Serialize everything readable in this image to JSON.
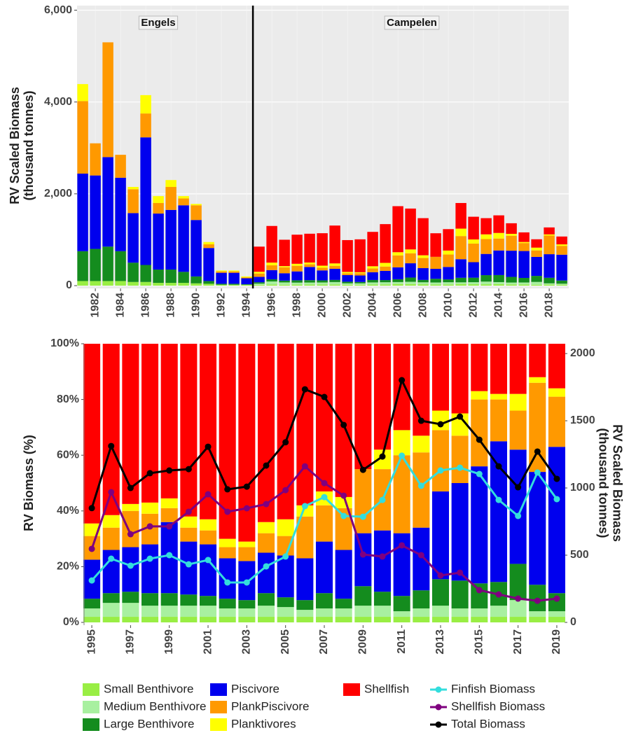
{
  "chart_data": [
    {
      "type": "bar",
      "stacked": true,
      "grid": true,
      "ylabel": [
        "RV Scaled Biomass",
        "(thousand tonnes)"
      ],
      "x": [
        1981,
        1982,
        1983,
        1984,
        1985,
        1986,
        1987,
        1988,
        1989,
        1990,
        1991,
        1992,
        1993,
        1994,
        1995,
        1996,
        1997,
        1998,
        1999,
        2000,
        2001,
        2002,
        2003,
        2004,
        2005,
        2006,
        2007,
        2008,
        2009,
        2010,
        2011,
        2012,
        2013,
        2014,
        2015,
        2016,
        2017,
        2018,
        2019
      ],
      "xlim": [
        1980.55,
        2019.55
      ],
      "xticks": [
        1982,
        1984,
        1986,
        1988,
        1990,
        1992,
        1994,
        1996,
        1998,
        2000,
        2002,
        2004,
        2006,
        2008,
        2010,
        2012,
        2014,
        2016,
        2018
      ],
      "ylim": [
        0,
        6100
      ],
      "yticks": [
        0,
        {
          "value": 2000,
          "label": "2,000"
        },
        {
          "value": 4000,
          "label": "4,000"
        },
        {
          "value": 6000,
          "label": "6,000"
        }
      ],
      "divider_x": 1994.5,
      "annotations": [
        "Engels",
        "Campelen"
      ],
      "series": [
        {
          "name": "Small Benthivore",
          "color": "#99ee44",
          "values": [
            100,
            100,
            100,
            100,
            80,
            80,
            60,
            60,
            60,
            50,
            40,
            20,
            20,
            20,
            17,
            26,
            20,
            22,
            23,
            23,
            26,
            20,
            20,
            23,
            27,
            35,
            34,
            29,
            23,
            25,
            36,
            30,
            29,
            31,
            27,
            23,
            20,
            25,
            21
          ]
        },
        {
          "name": "Medium Benthivore",
          "color": "#a8f0a0",
          "values": [
            0,
            0,
            0,
            0,
            0,
            0,
            0,
            0,
            0,
            0,
            0,
            0,
            0,
            0,
            26,
            65,
            50,
            44,
            45,
            46,
            52,
            30,
            30,
            47,
            47,
            43,
            50,
            44,
            46,
            49,
            36,
            45,
            59,
            46,
            41,
            46,
            61,
            25,
            21
          ]
        },
        {
          "name": "Large Benthivore",
          "color": "#148c1e",
          "values": [
            650,
            700,
            750,
            650,
            420,
            370,
            290,
            290,
            240,
            150,
            60,
            20,
            20,
            10,
            30,
            46,
            40,
            50,
            51,
            46,
            46,
            35,
            30,
            53,
            47,
            61,
            92,
            51,
            80,
            62,
            99,
            98,
            140,
            153,
            122,
            99,
            131,
            121,
            70
          ]
        },
        {
          "name": "Piscivore",
          "color": "#0000ee",
          "values": [
            1690,
            1600,
            1950,
            1600,
            1080,
            2780,
            1220,
            1300,
            1450,
            1230,
            720,
            240,
            240,
            130,
            119,
            202,
            160,
            194,
            288,
            217,
            242,
            144,
            141,
            170,
            201,
            260,
            311,
            257,
            217,
            271,
            405,
            338,
            463,
            536,
            571,
            586,
            414,
            514,
            562
          ]
        },
        {
          "name": "PlankPiscivore",
          "color": "#ff9900",
          "values": [
            1580,
            700,
            2500,
            500,
            520,
            520,
            230,
            500,
            150,
            320,
            80,
            30,
            30,
            20,
            72,
            104,
            130,
            122,
            57,
            57,
            66,
            40,
            51,
            82,
            94,
            260,
            218,
            221,
            262,
            271,
            504,
            405,
            323,
            260,
            326,
            174,
            141,
            406,
            193
          ]
        },
        {
          "name": "Planktivores",
          "color": "#ffff00",
          "values": [
            370,
            0,
            0,
            0,
            50,
            400,
            150,
            150,
            50,
            30,
            50,
            20,
            20,
            20,
            38,
            59,
            25,
            44,
            40,
            46,
            52,
            30,
            20,
            47,
            80,
            69,
            84,
            59,
            0,
            86,
            162,
            90,
            103,
            122,
            41,
            23,
            61,
            25,
            32
          ]
        },
        {
          "name": "Shellfish",
          "color": "#ff0000",
          "values": [
            0,
            0,
            0,
            0,
            0,
            0,
            0,
            0,
            0,
            0,
            0,
            0,
            0,
            0,
            548,
            798,
            575,
            634,
            627,
            707,
            825,
            693,
            717,
            749,
            844,
            1003,
            890,
            809,
            513,
            467,
            558,
            495,
            353,
            383,
            231,
            209,
            182,
            152,
            171
          ]
        }
      ]
    },
    {
      "type": "combo",
      "stacked": true,
      "legend": "bottom",
      "ylabel": "RV Biomass (%)",
      "y2label": [
        "RV Scaled Biomass",
        "(thousand tonnes)"
      ],
      "x": [
        1995,
        1996,
        1997,
        1998,
        1999,
        2000,
        2001,
        2002,
        2003,
        2004,
        2005,
        2006,
        2007,
        2008,
        2009,
        2010,
        2011,
        2012,
        2013,
        2014,
        2015,
        2016,
        2017,
        2018,
        2019
      ],
      "xlim": [
        1994.6,
        2019.4
      ],
      "xticks": [
        1995,
        1997,
        1999,
        2001,
        2003,
        2005,
        2007,
        2009,
        2011,
        2013,
        2015,
        2017,
        2019
      ],
      "ylim": [
        0,
        100
      ],
      "yticks": [
        {
          "value": 0,
          "label": "0%"
        },
        {
          "value": 20,
          "label": "20%"
        },
        {
          "value": 40,
          "label": "40%"
        },
        {
          "value": 60,
          "label": "60%"
        },
        {
          "value": 80,
          "label": "80%"
        },
        {
          "value": 100,
          "label": "100%"
        }
      ],
      "y2lim": [
        0,
        2073
      ],
      "y2ticks": [
        0,
        500,
        1000,
        1500,
        2000
      ],
      "series": [
        {
          "name": "Small Benthivore",
          "type": "bar",
          "color": "#99ee44",
          "values": [
            2,
            2,
            2,
            2,
            2,
            2,
            2,
            2,
            2,
            2,
            2,
            2,
            2,
            2,
            2,
            2,
            2,
            2,
            2,
            2,
            2,
            2,
            2,
            2,
            2
          ]
        },
        {
          "name": "Medium Benthivore",
          "type": "bar",
          "color": "#a8f0a0",
          "values": [
            3,
            5,
            5,
            4,
            4,
            4,
            4,
            3,
            3,
            4,
            3.5,
            2.5,
            3,
            3,
            4,
            4,
            2,
            3,
            4,
            3,
            3,
            4,
            6,
            2,
            2
          ]
        },
        {
          "name": "Large Benthivore",
          "type": "bar",
          "color": "#148c1e",
          "values": [
            3.5,
            3.5,
            4,
            4.5,
            4.5,
            4,
            3.5,
            3.5,
            3,
            4.5,
            3.5,
            3.5,
            5.5,
            3.5,
            7,
            5,
            5.5,
            6.5,
            9.5,
            10,
            9,
            8.5,
            13,
            9.5,
            6.5
          ]
        },
        {
          "name": "Piscivore",
          "type": "bar",
          "color": "#0000ee",
          "values": [
            14,
            15.5,
            16,
            17.5,
            25.5,
            19,
            18.5,
            14.5,
            14,
            14.5,
            15,
            15,
            18.5,
            17.5,
            19,
            22,
            22.5,
            22.5,
            31.5,
            35,
            42,
            50.5,
            41,
            40.5,
            52.5
          ]
        },
        {
          "name": "PlankPiscivore",
          "type": "bar",
          "color": "#ff9900",
          "values": [
            8.5,
            8,
            13,
            11,
            5,
            5,
            5,
            4,
            5,
            7,
            7,
            15,
            13,
            15,
            23,
            22,
            28,
            27,
            22,
            17,
            24,
            15,
            14,
            32,
            18
          ]
        },
        {
          "name": "Planktivores",
          "type": "bar",
          "color": "#ffff00",
          "values": [
            4.5,
            4.5,
            2.5,
            4,
            3.5,
            4,
            4,
            3,
            2,
            4,
            6,
            4,
            5,
            4,
            0,
            7,
            9,
            6,
            7,
            8,
            3,
            2,
            6,
            2,
            3
          ]
        },
        {
          "name": "Shellfish",
          "type": "bar",
          "color": "#ff0000",
          "values": [
            64.5,
            61.5,
            57.5,
            57,
            55.5,
            62,
            63,
            70,
            71,
            64,
            63,
            58,
            53,
            55,
            45,
            38,
            31,
            33,
            24,
            25,
            17,
            18,
            18,
            12,
            16
          ]
        },
        {
          "name": "Finfish Biomass",
          "type": "line",
          "axis": "y2",
          "color": "#33dddd",
          "values": [
            312,
            474,
            422,
            474,
            500,
            432,
            464,
            297,
            297,
            417,
            490,
            865,
            932,
            792,
            786,
            911,
            1240,
            1016,
            1130,
            1151,
            1104,
            911,
            792,
            1115,
            917
          ]
        },
        {
          "name": "Shellfish Biomass",
          "type": "line",
          "axis": "y2",
          "color": "#7f007f",
          "values": [
            547,
            969,
            656,
            714,
            714,
            823,
            953,
            823,
            849,
            880,
            984,
            1161,
            1036,
            943,
            505,
            490,
            573,
            500,
            349,
            370,
            240,
            208,
            177,
            161,
            177
          ]
        },
        {
          "name": "Total Biomass",
          "type": "line",
          "axis": "y2",
          "color": "#000000",
          "values": [
            850,
            1312,
            1000,
            1110,
            1130,
            1140,
            1307,
            990,
            1010,
            1167,
            1340,
            1734,
            1677,
            1469,
            1135,
            1234,
            1802,
            1500,
            1474,
            1531,
            1359,
            1161,
            1005,
            1271,
            1068
          ]
        }
      ]
    }
  ]
}
